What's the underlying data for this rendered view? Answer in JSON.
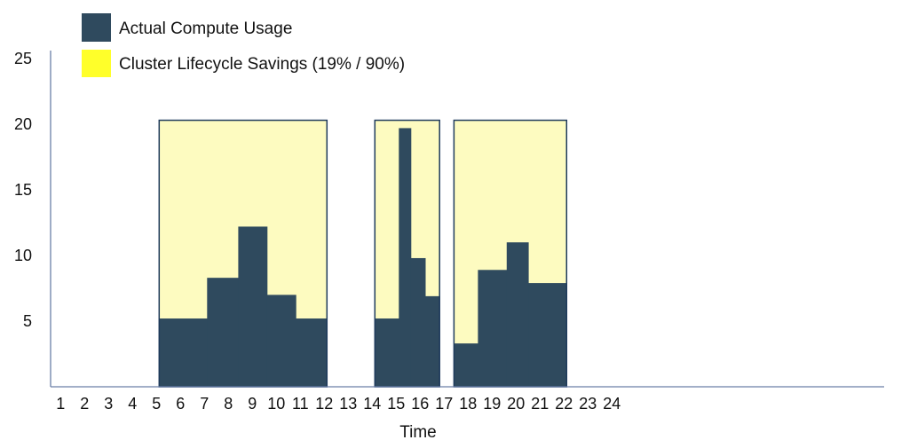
{
  "chart_data": {
    "type": "area",
    "xlabel": "Time",
    "ylim": [
      0,
      25
    ],
    "yticks": [
      5,
      10,
      15,
      20,
      25
    ],
    "xticks": [
      "1",
      "2",
      "3",
      "4",
      "5",
      "6",
      "7",
      "8",
      "9",
      "10",
      "11",
      "12",
      "13",
      "14",
      "15",
      "16",
      "17",
      "18",
      "19",
      "20",
      "21",
      "22",
      "23",
      "24"
    ],
    "grid": false,
    "legend_position": "top-left",
    "series": [
      {
        "name": "Actual Compute Usage",
        "color": "#2f4a5e",
        "steps": [
          {
            "x0": 5,
            "x1": 7,
            "y": 5.2
          },
          {
            "x0": 7,
            "x1": 8.3,
            "y": 8.3
          },
          {
            "x0": 8.3,
            "x1": 9.5,
            "y": 12.2
          },
          {
            "x0": 9.5,
            "x1": 10.7,
            "y": 7.0
          },
          {
            "x0": 10.7,
            "x1": 12,
            "y": 5.2
          },
          {
            "x0": 14,
            "x1": 15,
            "y": 5.2
          },
          {
            "x0": 15,
            "x1": 15.5,
            "y": 19.7
          },
          {
            "x0": 15.5,
            "x1": 16.1,
            "y": 9.8
          },
          {
            "x0": 16.1,
            "x1": 16.7,
            "y": 6.9
          },
          {
            "x0": 17.3,
            "x1": 18.3,
            "y": 3.3
          },
          {
            "x0": 18.3,
            "x1": 19.5,
            "y": 8.9
          },
          {
            "x0": 19.5,
            "x1": 20.4,
            "y": 11.0
          },
          {
            "x0": 20.4,
            "x1": 22,
            "y": 7.9
          }
        ]
      },
      {
        "name": "Cluster Lifecycle Savings (19% / 90%)",
        "color": "#fdfbc0",
        "legend_color": "#ffff2a",
        "border_color": "#1e3a5c",
        "windows": [
          {
            "x0": 5,
            "x1": 12,
            "y": 20.3
          },
          {
            "x0": 14,
            "x1": 16.7,
            "y": 20.3
          },
          {
            "x0": 17.3,
            "x1": 22,
            "y": 20.3
          }
        ]
      }
    ]
  }
}
